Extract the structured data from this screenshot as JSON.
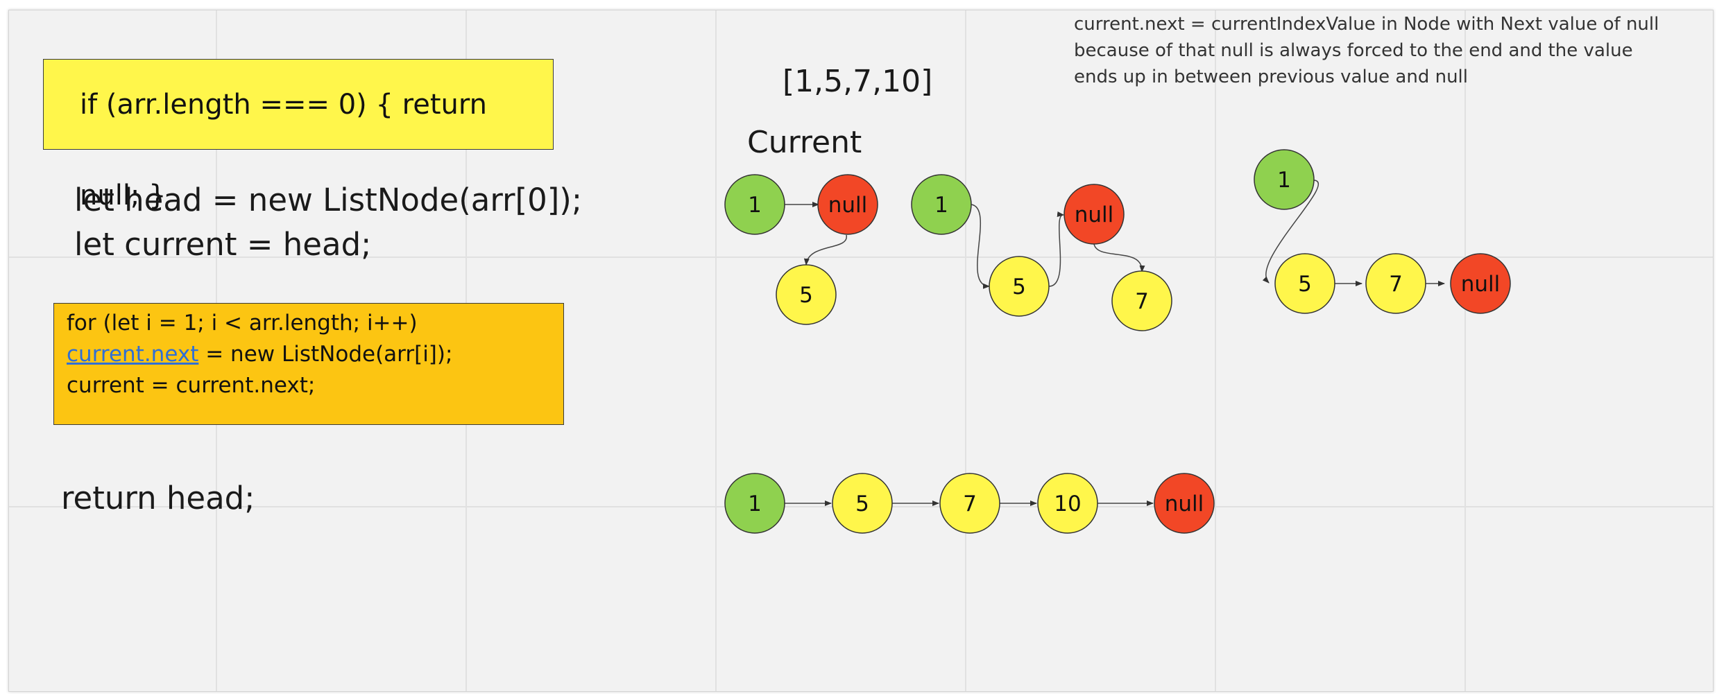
{
  "code": {
    "if_statement": "if (arr.length === 0) { return null; }",
    "head_declaration": "let head = new ListNode(arr[0]);",
    "current_declaration": "let current = head;",
    "for_loop": {
      "line1": "for (let i = 1; i < arr.length; i++)",
      "line2_link": "current.next",
      "line2_rest": " = new ListNode(arr[i]);",
      "line3": "current = current.next;"
    },
    "return_statement": "return head;"
  },
  "diagram": {
    "array_label": "[1,5,7,10]",
    "current_label": "Current",
    "explanation": [
      "current.next = currentIndexValue in Node with Next value of null",
      "because of that null is always forced to the end and the value",
      "ends up in between previous value and null"
    ],
    "colors": {
      "head_node": "#8fd14f",
      "value_node": "#fff64b",
      "null_node": "#f24726",
      "sticky_yellow": "#fff64b",
      "sticky_orange": "#fcc512",
      "link": "#2f6fd6"
    },
    "groups": [
      {
        "name": "step-1",
        "nodes": [
          {
            "id": "g1-n1",
            "label": "1",
            "kind": "head"
          },
          {
            "id": "g1-null",
            "label": "null",
            "kind": "null"
          },
          {
            "id": "g1-n5",
            "label": "5",
            "kind": "value"
          }
        ]
      },
      {
        "name": "step-2",
        "nodes": [
          {
            "id": "g2-n1",
            "label": "1",
            "kind": "head"
          },
          {
            "id": "g2-n5",
            "label": "5",
            "kind": "value"
          },
          {
            "id": "g2-null",
            "label": "null",
            "kind": "null"
          },
          {
            "id": "g2-n7",
            "label": "7",
            "kind": "value"
          }
        ]
      },
      {
        "name": "step-3",
        "nodes": [
          {
            "id": "g3-n1",
            "label": "1",
            "kind": "head"
          },
          {
            "id": "g3-n5",
            "label": "5",
            "kind": "value"
          },
          {
            "id": "g3-n7",
            "label": "7",
            "kind": "value"
          },
          {
            "id": "g3-null",
            "label": "null",
            "kind": "null"
          }
        ]
      },
      {
        "name": "final-list",
        "nodes": [
          {
            "id": "f-n1",
            "label": "1",
            "kind": "head"
          },
          {
            "id": "f-n5",
            "label": "5",
            "kind": "value"
          },
          {
            "id": "f-n7",
            "label": "7",
            "kind": "value"
          },
          {
            "id": "f-n10",
            "label": "10",
            "kind": "value"
          },
          {
            "id": "f-null",
            "label": "null",
            "kind": "null"
          }
        ]
      }
    ]
  }
}
